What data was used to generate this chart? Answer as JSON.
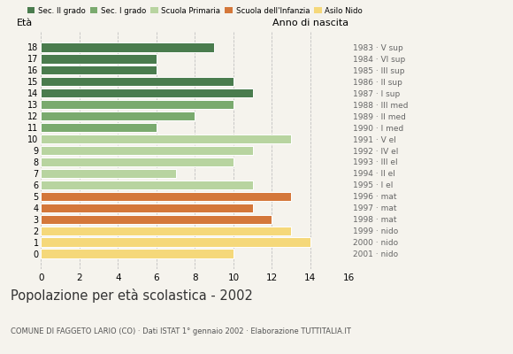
{
  "ages": [
    18,
    17,
    16,
    15,
    14,
    13,
    12,
    11,
    10,
    9,
    8,
    7,
    6,
    5,
    4,
    3,
    2,
    1,
    0
  ],
  "values": [
    9,
    6,
    6,
    10,
    11,
    10,
    8,
    6,
    13,
    11,
    10,
    7,
    11,
    13,
    11,
    12,
    13,
    14,
    10
  ],
  "colors": [
    "#4a7c4e",
    "#4a7c4e",
    "#4a7c4e",
    "#4a7c4e",
    "#4a7c4e",
    "#7aaa6e",
    "#7aaa6e",
    "#7aaa6e",
    "#b8d4a0",
    "#b8d4a0",
    "#b8d4a0",
    "#b8d4a0",
    "#b8d4a0",
    "#d4773a",
    "#d4773a",
    "#d4773a",
    "#f5d87a",
    "#f5d87a",
    "#f5d87a"
  ],
  "right_labels": [
    "1983 · V sup",
    "1984 · VI sup",
    "1985 · III sup",
    "1986 · II sup",
    "1987 · I sup",
    "1988 · III med",
    "1989 · II med",
    "1990 · I med",
    "1991 · V el",
    "1992 · IV el",
    "1993 · III el",
    "1994 · II el",
    "1995 · I el",
    "1996 · mat",
    "1997 · mat",
    "1998 · mat",
    "1999 · nido",
    "2000 · nido",
    "2001 · nido"
  ],
  "legend_labels": [
    "Sec. II grado",
    "Sec. I grado",
    "Scuola Primaria",
    "Scuola dell'Infanzia",
    "Asilo Nido"
  ],
  "legend_colors": [
    "#4a7c4e",
    "#7aaa6e",
    "#b8d4a0",
    "#d4773a",
    "#f5d87a"
  ],
  "title": "Popolazione per età scolastica - 2002",
  "subtitle": "COMUNE DI FAGGETO LARIO (CO) · Dati ISTAT 1° gennaio 2002 · Elaborazione TUTTITALIA.IT",
  "ylabel_left": "Età",
  "ylabel_right": "Anno di nascita",
  "xlim": [
    0,
    16
  ],
  "xticks": [
    0,
    2,
    4,
    6,
    8,
    10,
    12,
    14,
    16
  ],
  "bar_height": 0.8,
  "background_color": "#f5f3ed"
}
